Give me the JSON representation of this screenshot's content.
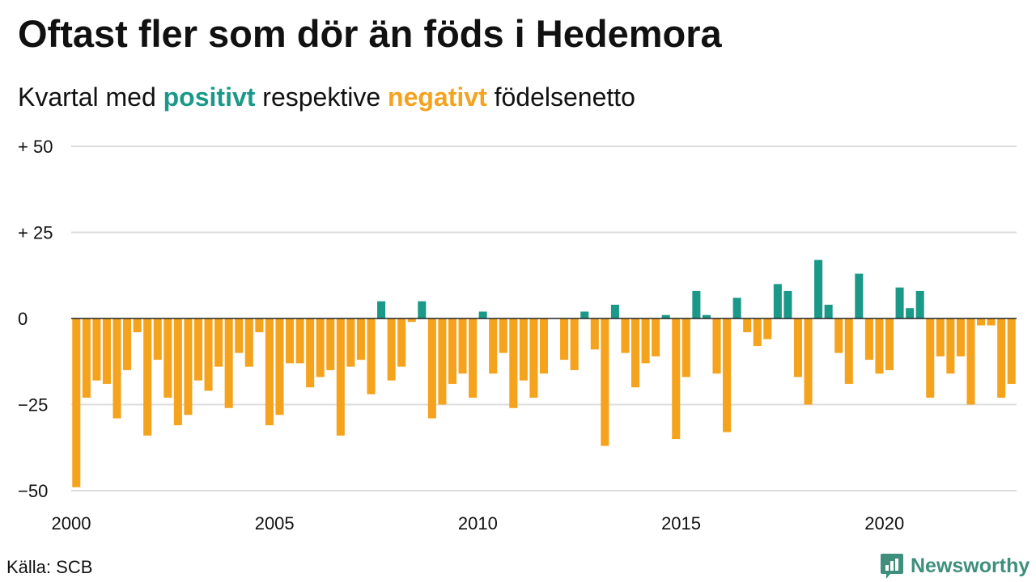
{
  "title": "Oftast fler som dör än föds i Hedemora",
  "subtitle": {
    "prefix": "Kvartal med",
    "positive_word": "positivt",
    "middle": "respektive",
    "negative_word": "negativt",
    "suffix": "födelsenetto"
  },
  "source": "Källa: SCB",
  "brand": "Newsworthy",
  "colors": {
    "positive": "#1a9988",
    "negative": "#f5a21d",
    "grid": "#dddddd",
    "brand": "#3f8f7c"
  },
  "chart_data": {
    "type": "bar",
    "xlabel": "",
    "ylabel": "",
    "ylim": [
      -50,
      50
    ],
    "x_range": [
      2000,
      2023.25
    ],
    "yticks": [
      {
        "value": 50,
        "label": "+ 50"
      },
      {
        "value": 25,
        "label": "+ 25"
      },
      {
        "value": 0,
        "label": "0"
      },
      {
        "value": -25,
        "label": "−25"
      },
      {
        "value": -50,
        "label": "−50"
      }
    ],
    "xticks": [
      "2000",
      "2005",
      "2010",
      "2015",
      "2020"
    ],
    "grid": true,
    "start_year": 2000,
    "values": [
      -49,
      -23,
      -18,
      -19,
      -29,
      -15,
      -4,
      -34,
      -12,
      -23,
      -31,
      -28,
      -18,
      -21,
      -14,
      -26,
      -10,
      -14,
      -4,
      -31,
      -28,
      -13,
      -13,
      -20,
      -17,
      -15,
      -34,
      -14,
      -12,
      -22,
      5,
      -18,
      -14,
      -1,
      5,
      -29,
      -25,
      -19,
      -16,
      -23,
      2,
      -16,
      -10,
      -26,
      -18,
      -23,
      -16,
      0,
      -12,
      -15,
      2,
      -9,
      -37,
      4,
      -10,
      -20,
      -13,
      -11,
      1,
      -35,
      -17,
      8,
      1,
      -16,
      -33,
      6,
      -4,
      -8,
      -6,
      10,
      8,
      -17,
      -25,
      17,
      4,
      -10,
      -19,
      13,
      -12,
      -16,
      -15,
      9,
      3,
      8,
      -23,
      -11,
      -16,
      -11,
      -25,
      -2,
      -2,
      -23,
      -19
    ]
  }
}
